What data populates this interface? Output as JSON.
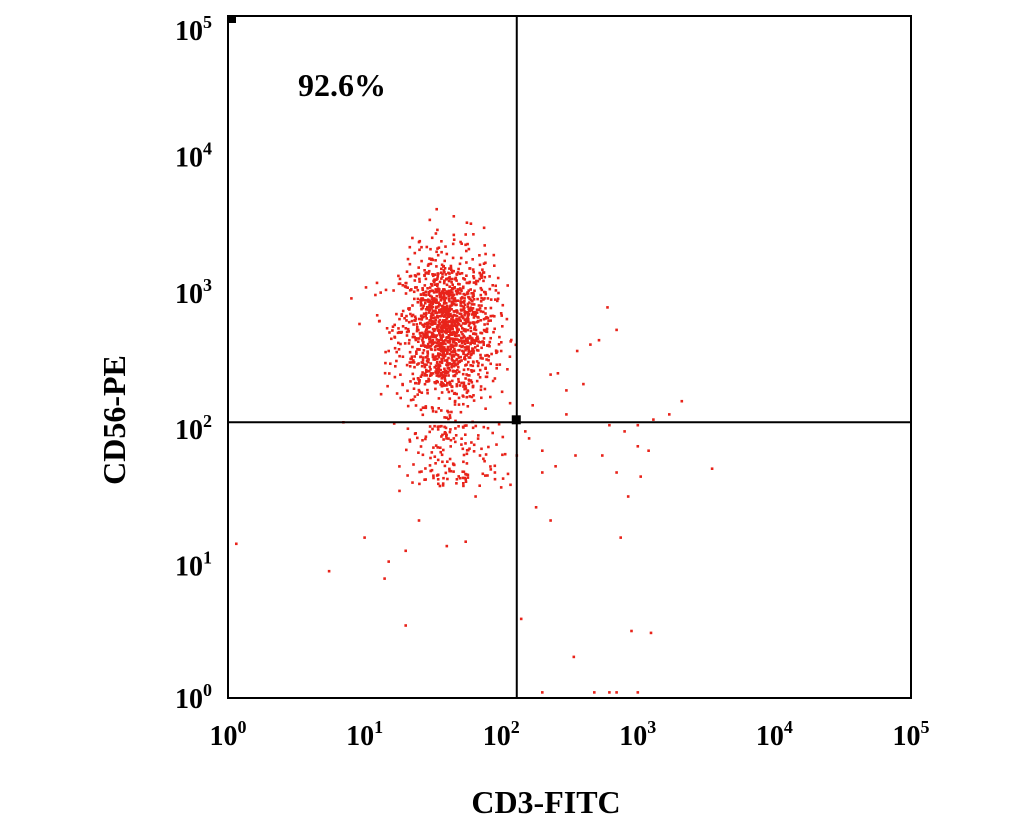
{
  "chart_data": {
    "type": "scatter",
    "title": "",
    "xlabel": "CD3-FITC",
    "ylabel": "CD56-PE",
    "xscale": "log",
    "yscale": "log",
    "xlim": [
      1,
      100000
    ],
    "ylim": [
      1,
      100000
    ],
    "x_ticks": [
      {
        "base": "10",
        "exp": "0"
      },
      {
        "base": "10",
        "exp": "1"
      },
      {
        "base": "10",
        "exp": "2"
      },
      {
        "base": "10",
        "exp": "3"
      },
      {
        "base": "10",
        "exp": "4"
      },
      {
        "base": "10",
        "exp": "5"
      }
    ],
    "y_ticks": [
      {
        "base": "10",
        "exp": "0"
      },
      {
        "base": "10",
        "exp": "1"
      },
      {
        "base": "10",
        "exp": "2"
      },
      {
        "base": "10",
        "exp": "3"
      },
      {
        "base": "10",
        "exp": "4"
      },
      {
        "base": "10",
        "exp": "5"
      }
    ],
    "quadrant_gate": {
      "x": 130,
      "y": 105
    },
    "annotation": "92.6%",
    "point_color": "#e8231a",
    "grid": false,
    "cluster": {
      "center_x": 40,
      "center_y": 500,
      "upper_left_fraction": 0.926
    },
    "points": [
      [
        8,
        850
      ],
      [
        12,
        900
      ],
      [
        7,
        105
      ],
      [
        20,
        1100
      ],
      [
        15,
        350
      ],
      [
        18,
        600
      ],
      [
        25,
        2200
      ],
      [
        30,
        3200
      ],
      [
        45,
        3400
      ],
      [
        60,
        3000
      ],
      [
        75,
        2800
      ],
      [
        70,
        1500
      ],
      [
        95,
        1200
      ],
      [
        110,
        600
      ],
      [
        100,
        350
      ],
      [
        90,
        220
      ],
      [
        35,
        2000
      ],
      [
        55,
        2500
      ],
      [
        40,
        1800
      ],
      [
        28,
        1300
      ],
      [
        18,
        33
      ],
      [
        25,
        20
      ],
      [
        20,
        12
      ],
      [
        15,
        10
      ],
      [
        14,
        7.5
      ],
      [
        10,
        15
      ],
      [
        5.5,
        8.5
      ],
      [
        1.15,
        13.5
      ],
      [
        20,
        3.4
      ],
      [
        40,
        13
      ],
      [
        55,
        14
      ],
      [
        28,
        40
      ],
      [
        70,
        60
      ],
      [
        90,
        45
      ],
      [
        100,
        35
      ],
      [
        65,
        30
      ],
      [
        45,
        80
      ],
      [
        80,
        95
      ],
      [
        140,
        3.8
      ],
      [
        200,
        1.1
      ],
      [
        340,
        2
      ],
      [
        480,
        1.1
      ],
      [
        620,
        1.1
      ],
      [
        700,
        1.1
      ],
      [
        1000,
        1.1
      ],
      [
        900,
        3.1
      ],
      [
        1250,
        3.0
      ],
      [
        750,
        15
      ],
      [
        850,
        30
      ],
      [
        1000,
        70
      ],
      [
        1050,
        42
      ],
      [
        3500,
        48
      ],
      [
        230,
        235
      ],
      [
        260,
        240
      ],
      [
        300,
        180
      ],
      [
        360,
        350
      ],
      [
        450,
        390
      ],
      [
        520,
        420
      ],
      [
        600,
        730
      ],
      [
        700,
        500
      ],
      [
        1300,
        110
      ],
      [
        1700,
        120
      ],
      [
        2100,
        150
      ],
      [
        1000,
        100
      ],
      [
        800,
        90
      ],
      [
        350,
        60
      ],
      [
        250,
        50
      ],
      [
        200,
        45
      ],
      [
        170,
        140
      ],
      [
        160,
        80
      ],
      [
        200,
        65
      ],
      [
        300,
        120
      ],
      [
        400,
        200
      ],
      [
        550,
        60
      ],
      [
        620,
        100
      ],
      [
        150,
        90
      ],
      [
        130,
        60
      ],
      [
        180,
        25
      ],
      [
        230,
        20
      ],
      [
        700,
        45
      ],
      [
        1200,
        65
      ]
    ]
  }
}
